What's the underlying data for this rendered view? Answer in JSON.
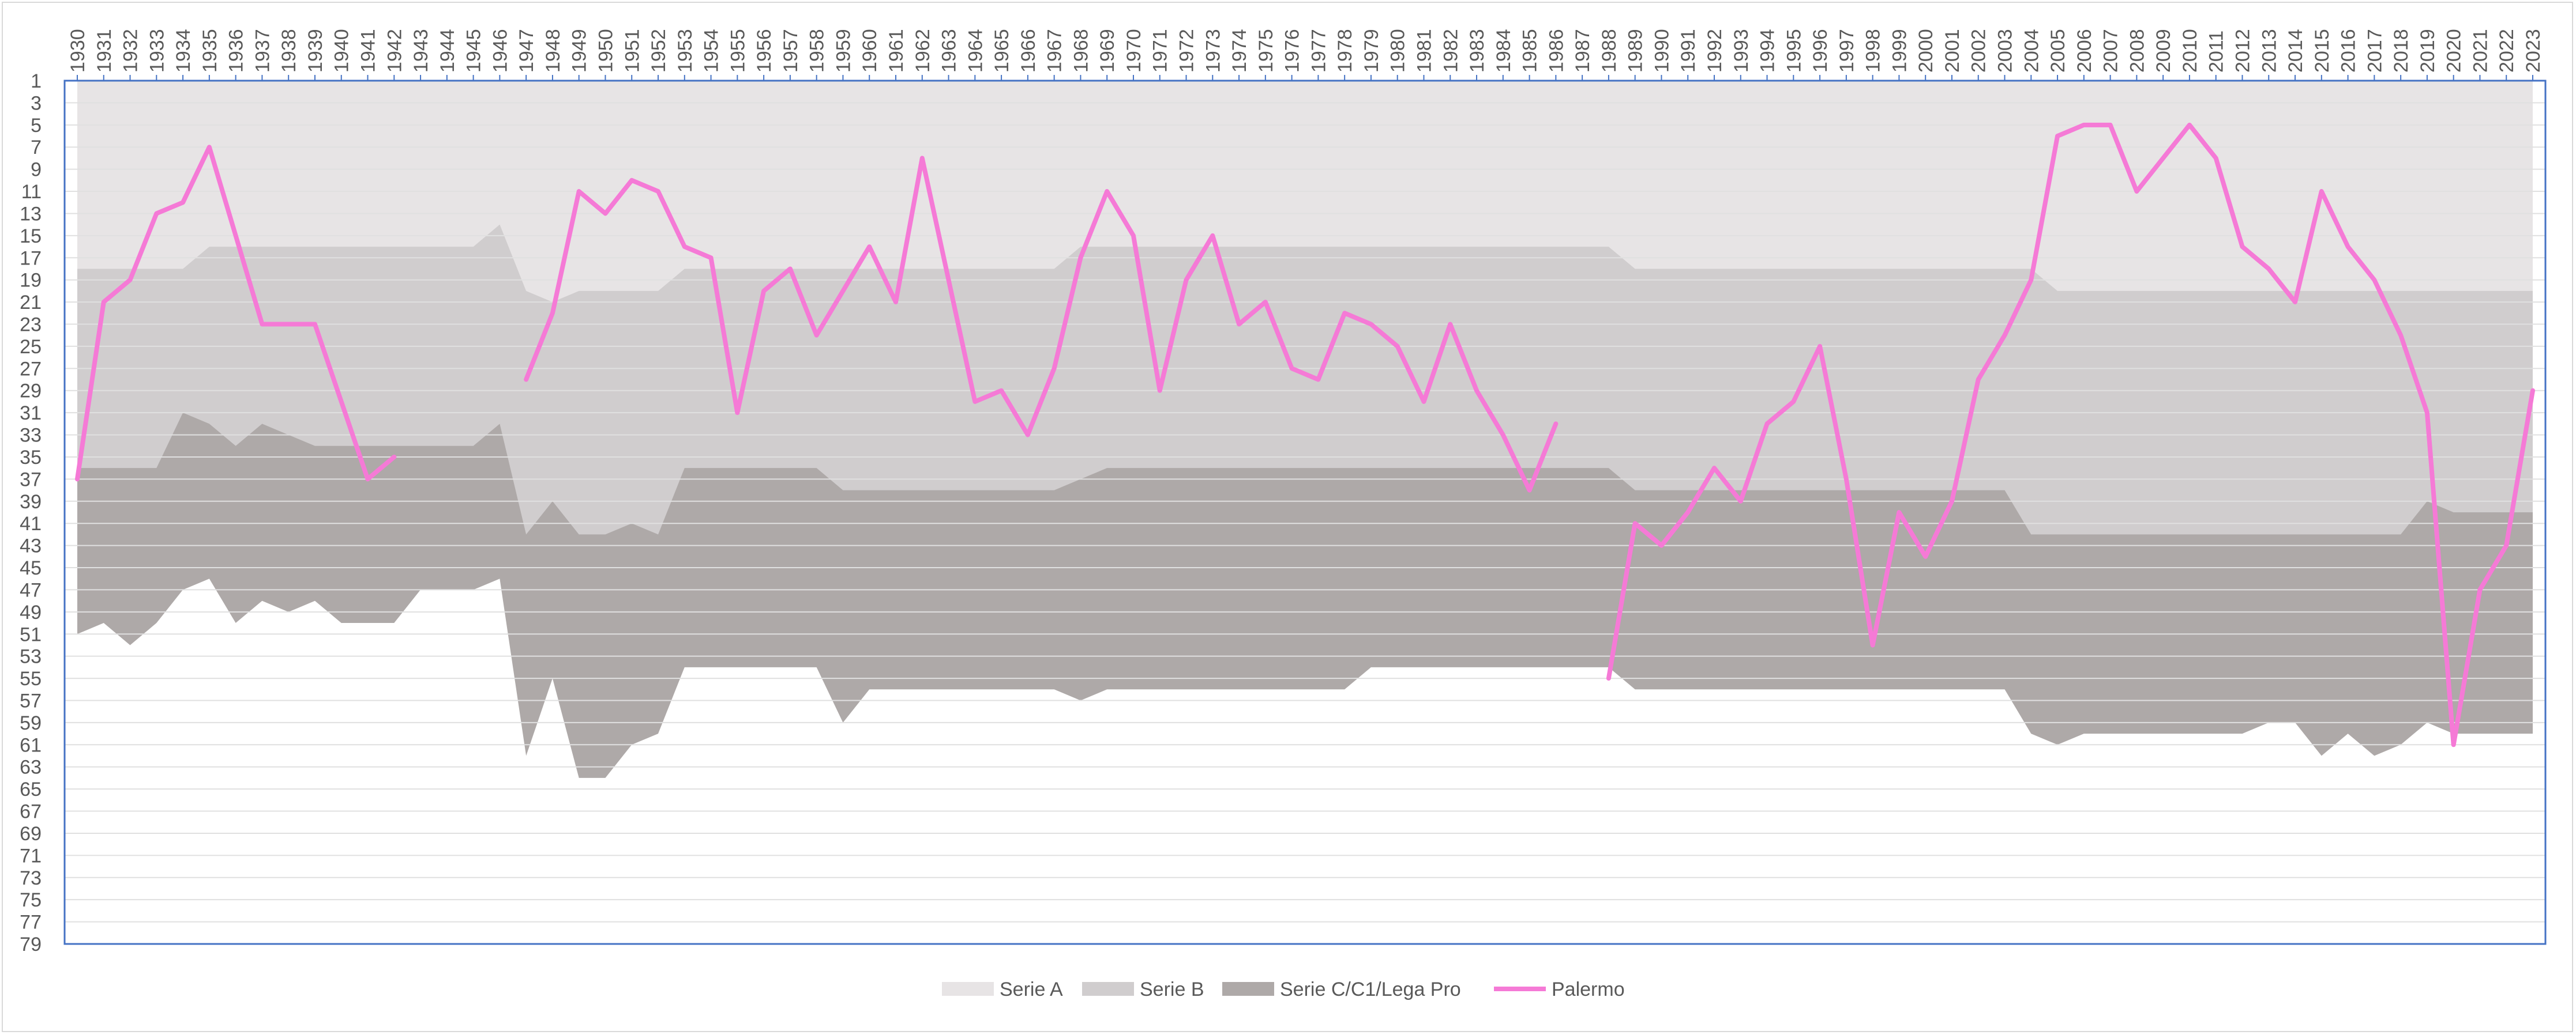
{
  "chart_data": {
    "type": "area",
    "title": "",
    "xlabel": "",
    "ylabel": "",
    "y_inverted": true,
    "ylim": [
      1,
      79
    ],
    "y_ticks": [
      1,
      3,
      5,
      7,
      9,
      11,
      13,
      15,
      17,
      19,
      21,
      23,
      25,
      27,
      29,
      31,
      33,
      35,
      37,
      39,
      41,
      43,
      45,
      47,
      49,
      51,
      53,
      55,
      57,
      59,
      61,
      63,
      65,
      67,
      69,
      71,
      73,
      75,
      77,
      79
    ],
    "x_axis_position": "top",
    "grid": true,
    "legend_position": "bottom-center",
    "x": [
      1930,
      1931,
      1932,
      1933,
      1934,
      1935,
      1936,
      1937,
      1938,
      1939,
      1940,
      1941,
      1942,
      1943,
      1944,
      1945,
      1946,
      1947,
      1948,
      1949,
      1950,
      1951,
      1952,
      1953,
      1954,
      1955,
      1956,
      1957,
      1958,
      1959,
      1960,
      1961,
      1962,
      1963,
      1964,
      1965,
      1966,
      1967,
      1968,
      1969,
      1970,
      1971,
      1972,
      1973,
      1974,
      1975,
      1976,
      1977,
      1978,
      1979,
      1980,
      1981,
      1982,
      1983,
      1984,
      1985,
      1986,
      1987,
      1988,
      1989,
      1990,
      1991,
      1992,
      1993,
      1994,
      1995,
      1996,
      1997,
      1998,
      1999,
      2000,
      2001,
      2002,
      2003,
      2004,
      2005,
      2006,
      2007,
      2008,
      2009,
      2010,
      2011,
      2012,
      2013,
      2014,
      2015,
      2016,
      2017,
      2018,
      2019,
      2020,
      2021,
      2022,
      2023
    ],
    "x_labels": [
      "1930",
      "1931",
      "1932",
      "1933",
      "1934",
      "1935",
      "1936",
      "1937",
      "1938",
      "1939",
      "1940",
      "1941",
      "1942",
      "1943",
      "1944",
      "1945",
      "1946",
      "1947",
      "1948",
      "1949",
      "1950",
      "1951",
      "1952",
      "1953",
      "1954",
      "1955",
      "1956",
      "1957",
      "1958",
      "1959",
      "1960",
      "1961",
      "1962",
      "1963",
      "1964",
      "1965",
      "1966",
      "1967",
      "1968",
      "1969",
      "1970",
      "1971",
      "1972",
      "1973",
      "1974",
      "1975",
      "1976",
      "1977",
      "1978",
      "1979",
      "1980",
      "1981",
      "1982",
      "1983",
      "1984",
      "1985",
      "1986",
      "1987",
      "1988",
      "1989",
      "1990",
      "1991",
      "1992",
      "1993",
      "1994",
      "1995",
      "1996",
      "1997",
      "1998",
      "1999",
      "2000",
      "2001",
      "2002",
      "2003",
      "2004",
      "2005",
      "2006",
      "2007",
      "2008",
      "2009",
      "2010",
      "2011",
      "2012",
      "2013",
      "2014",
      "2015",
      "2016",
      "2017",
      "2018",
      "2019",
      "2020",
      "2021",
      "2022",
      "2023"
    ],
    "series": [
      {
        "name": "Serie A",
        "kind": "area",
        "color": "#e7e4e5",
        "values": [
          18,
          18,
          18,
          18,
          18,
          16,
          16,
          16,
          16,
          16,
          16,
          16,
          16,
          16,
          16,
          16,
          14,
          20,
          21,
          20,
          20,
          20,
          20,
          18,
          18,
          18,
          18,
          18,
          18,
          18,
          18,
          18,
          18,
          18,
          18,
          18,
          18,
          18,
          16,
          16,
          16,
          16,
          16,
          16,
          16,
          16,
          16,
          16,
          16,
          16,
          16,
          16,
          16,
          16,
          16,
          16,
          16,
          16,
          16,
          18,
          18,
          18,
          18,
          18,
          18,
          18,
          18,
          18,
          18,
          18,
          18,
          18,
          18,
          18,
          18,
          20,
          20,
          20,
          20,
          20,
          20,
          20,
          20,
          20,
          20,
          20,
          20,
          20,
          20,
          20,
          20,
          20,
          20,
          20
        ]
      },
      {
        "name": "Serie B",
        "kind": "area",
        "color": "#d0cdce",
        "values": [
          36,
          36,
          36,
          36,
          31,
          32,
          34,
          32,
          33,
          34,
          34,
          34,
          34,
          34,
          34,
          34,
          32,
          42,
          39,
          42,
          42,
          41,
          42,
          36,
          36,
          36,
          36,
          36,
          36,
          38,
          38,
          38,
          38,
          38,
          38,
          38,
          38,
          38,
          37,
          36,
          36,
          36,
          36,
          36,
          36,
          36,
          36,
          36,
          36,
          36,
          36,
          36,
          36,
          36,
          36,
          36,
          36,
          36,
          36,
          38,
          38,
          38,
          38,
          38,
          38,
          38,
          38,
          38,
          38,
          38,
          38,
          38,
          38,
          38,
          42,
          42,
          42,
          42,
          42,
          42,
          42,
          42,
          42,
          42,
          42,
          42,
          42,
          42,
          42,
          39,
          40,
          40,
          40,
          40
        ]
      },
      {
        "name": "Serie C/C1/Lega Pro",
        "kind": "area",
        "color": "#aea9a8",
        "values": [
          51,
          50,
          52,
          50,
          47,
          46,
          50,
          48,
          49,
          48,
          50,
          50,
          50,
          47,
          47,
          47,
          46,
          62,
          55,
          64,
          64,
          61,
          60,
          54,
          54,
          54,
          54,
          54,
          54,
          59,
          56,
          56,
          56,
          56,
          56,
          56,
          56,
          56,
          57,
          56,
          56,
          56,
          56,
          56,
          56,
          56,
          56,
          56,
          56,
          54,
          54,
          54,
          54,
          54,
          54,
          54,
          54,
          54,
          54,
          56,
          56,
          56,
          56,
          56,
          56,
          56,
          56,
          56,
          56,
          56,
          56,
          56,
          56,
          56,
          60,
          61,
          60,
          60,
          60,
          60,
          60,
          60,
          60,
          59,
          59,
          62,
          60,
          62,
          61,
          59,
          60,
          60,
          60,
          60
        ]
      },
      {
        "name": "Palermo",
        "kind": "line",
        "color": "#f57ad6",
        "values": [
          37,
          21,
          19,
          13,
          12,
          7,
          15,
          23,
          23,
          23,
          30,
          37,
          35,
          null,
          null,
          null,
          null,
          28,
          22,
          11,
          13,
          10,
          11,
          16,
          17,
          31,
          20,
          18,
          24,
          20,
          16,
          21,
          8,
          19,
          30,
          29,
          33,
          27,
          17,
          11,
          15,
          29,
          19,
          15,
          23,
          21,
          27,
          28,
          22,
          23,
          25,
          30,
          23,
          29,
          33,
          38,
          32,
          null,
          55,
          41,
          43,
          40,
          36,
          39,
          32,
          30,
          25,
          37,
          52,
          40,
          44,
          39,
          28,
          24,
          19,
          6,
          5,
          5,
          11,
          8,
          5,
          8,
          16,
          18,
          21,
          11,
          16,
          19,
          24,
          31,
          61,
          47,
          43,
          29
        ]
      }
    ]
  }
}
